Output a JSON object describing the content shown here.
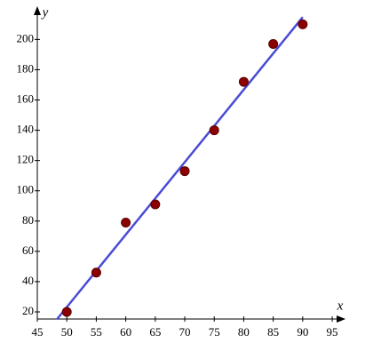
{
  "chart_data": {
    "type": "scatter",
    "x_label": "x",
    "y_label": "y",
    "x": [
      50,
      55,
      60,
      65,
      70,
      75,
      80,
      85,
      90
    ],
    "values": [
      20,
      46,
      79,
      91,
      113,
      140,
      172,
      197,
      210
    ],
    "color": "#8b0000",
    "fit_line": {
      "x": [
        48.3,
        90
      ],
      "values": [
        15,
        214.7
      ],
      "color": "#4b4bd6"
    },
    "xlim": [
      45,
      96.8
    ],
    "ylim": [
      15.3,
      219
    ],
    "xticks": [
      45,
      50,
      55,
      60,
      65,
      70,
      75,
      80,
      85,
      90,
      95
    ],
    "yticks": [
      20,
      40,
      60,
      80,
      100,
      120,
      140,
      160,
      180,
      200
    ],
    "grid": false
  }
}
